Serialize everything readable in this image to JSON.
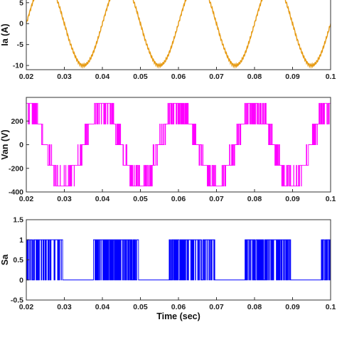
{
  "chart_data": [
    {
      "type": "line",
      "ylabel": "Ia (A)",
      "xlabel": "",
      "xlim": [
        0.02,
        0.1
      ],
      "ylim": [
        -11,
        7
      ],
      "xticks": [
        "0.02",
        "0.03",
        "0.04",
        "0.05",
        "0.06",
        "0.07",
        "0.08",
        "0.09",
        "0.1"
      ],
      "yticks": [
        "5",
        "0",
        "-5",
        "-10"
      ],
      "grid": false,
      "series": [
        {
          "color": "#e69a12",
          "waveform": "sine",
          "amplitude": 10,
          "frequency_hz": 50,
          "period_s": 0.02,
          "negative_peaks_at_s": [
            0.035,
            0.055,
            0.075,
            0.095
          ],
          "zero_crossings_rising_s": [
            0.04,
            0.06,
            0.08,
            0.1
          ]
        }
      ]
    },
    {
      "type": "line",
      "ylabel": "Van (V)",
      "xlabel": "",
      "xlim": [
        0.02,
        0.1
      ],
      "ylim": [
        -400,
        400
      ],
      "xticks": [
        "0.02",
        "0.03",
        "0.04",
        "0.05",
        "0.06",
        "0.07",
        "0.08",
        "0.09",
        "0.1"
      ],
      "yticks": [
        "200",
        "0",
        "-200",
        "-400"
      ],
      "grid": false,
      "series": [
        {
          "color": "#ff00ff",
          "waveform": "multilevel PWM staircase",
          "levels": [
            -350,
            -175,
            0,
            175,
            350
          ],
          "frequency_hz": 50
        }
      ]
    },
    {
      "type": "line",
      "ylabel": "Sa",
      "xlabel": "Time (sec)",
      "xlim": [
        0.02,
        0.1
      ],
      "ylim": [
        -0.5,
        1.5
      ],
      "xticks": [
        "0.02",
        "0.03",
        "0.04",
        "0.05",
        "0.06",
        "0.07",
        "0.08",
        "0.09",
        "0.1"
      ],
      "yticks": [
        "1.5",
        "1",
        "0.5",
        "0",
        "-0.5"
      ],
      "grid": false,
      "series": [
        {
          "color": "#0000ff",
          "waveform": "switching pulses",
          "levels": [
            0,
            1
          ],
          "active_intervals_s": [
            [
              0.02,
              0.0295
            ],
            [
              0.0375,
              0.0495
            ],
            [
              0.0575,
              0.0695
            ],
            [
              0.0775,
              0.0895
            ],
            [
              0.0975,
              0.1
            ]
          ]
        }
      ]
    }
  ]
}
